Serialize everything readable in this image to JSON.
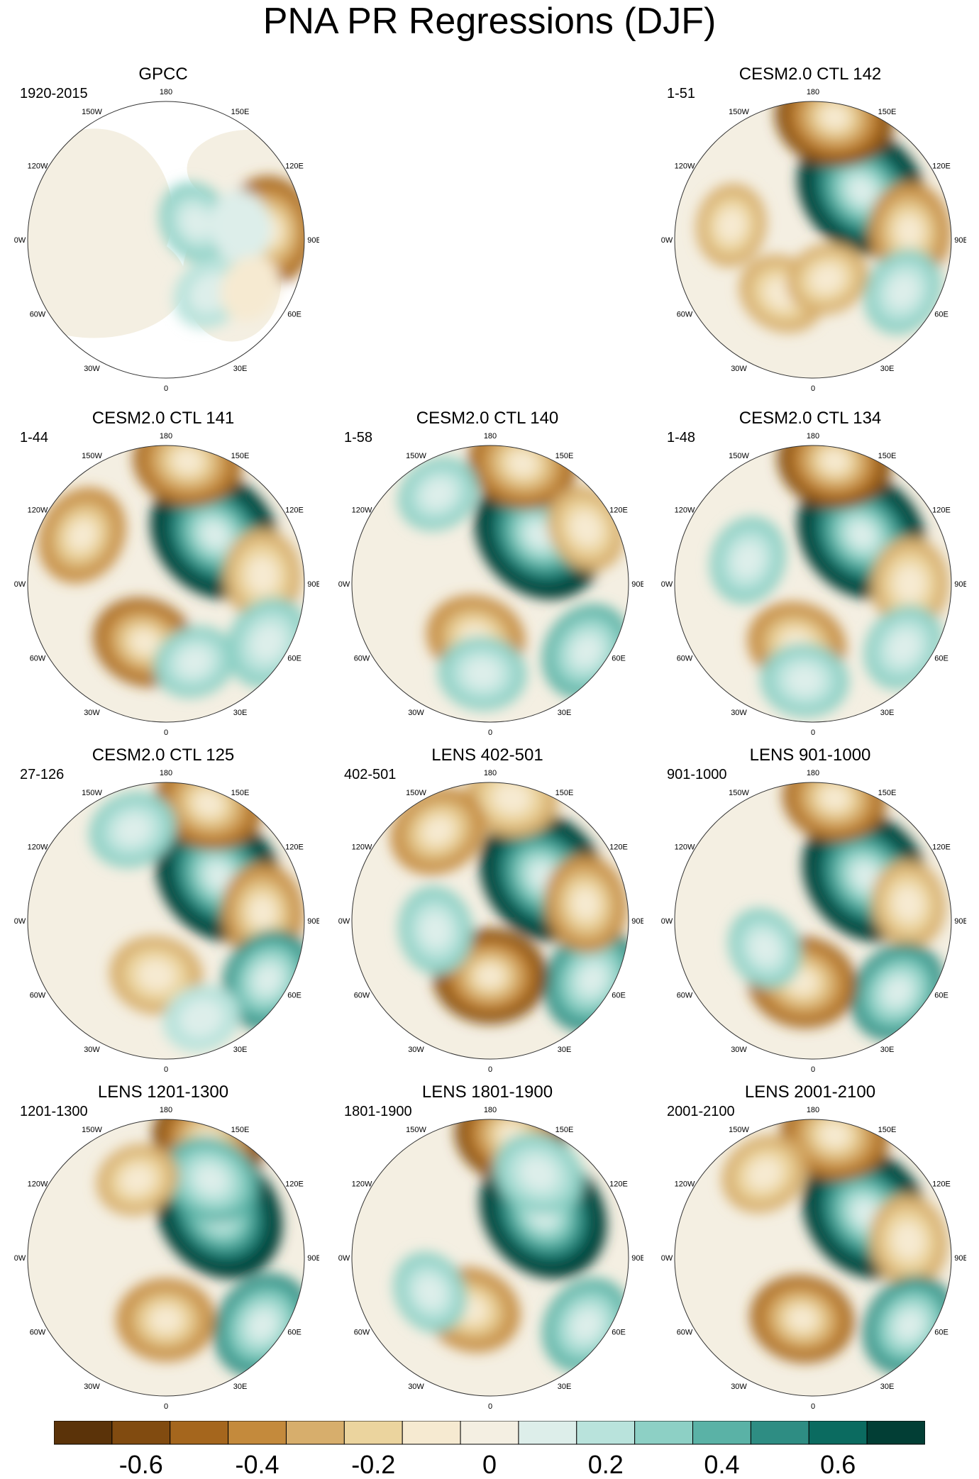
{
  "title": "PNA PR Regressions (DJF)",
  "chart_data": {
    "type": "heatmap",
    "title": "PNA PR Regressions (DJF)",
    "projection": "north-polar-stereographic",
    "longitude_labels": [
      "180",
      "150E",
      "120E",
      "90E",
      "60E",
      "30E",
      "0",
      "30W",
      "60W",
      "90W",
      "120W",
      "150W"
    ],
    "colorbar": {
      "levels": [
        -0.7,
        -0.6,
        -0.5,
        -0.4,
        -0.3,
        -0.2,
        -0.1,
        0,
        0.1,
        0.2,
        0.3,
        0.4,
        0.5,
        0.6,
        0.7
      ],
      "tick_labels": [
        "-0.6",
        "-0.4",
        "-0.2",
        "0",
        "0.2",
        "0.4",
        "0.6"
      ],
      "tick_values": [
        -0.6,
        -0.4,
        -0.2,
        0,
        0.2,
        0.4,
        0.6
      ],
      "colors": [
        "#5b3309",
        "#814b10",
        "#a5661d",
        "#c48a3c",
        "#d7ae6c",
        "#ebd49e",
        "#f6ead1",
        "#f4efe2",
        "#ddeeea",
        "#b9e3dc",
        "#8dd0c5",
        "#5ab2a6",
        "#2e8d83",
        "#0b6b60",
        "#023e35"
      ]
    },
    "panels": [
      {
        "title": "GPCC",
        "subtitle": "1920-2015",
        "land_only": true,
        "features": [
          {
            "lon": 120,
            "r": 0.25,
            "v": 0.25
          },
          {
            "lon": 95,
            "r": 0.75,
            "v": -0.5
          },
          {
            "lon": 40,
            "r": 0.5,
            "v": 0.2
          },
          {
            "lon": 100,
            "r": 0.55,
            "v": 0.15
          },
          {
            "lon": 60,
            "r": 0.7,
            "v": -0.1
          }
        ]
      },
      {
        "title": "",
        "subtitle": "",
        "empty": true
      },
      {
        "title": "CESM2.0 CTL 142",
        "subtitle": "1-51",
        "features": [
          {
            "lon": 135,
            "r": 0.5,
            "v": 0.8
          },
          {
            "lon": 170,
            "r": 0.9,
            "v": -0.6
          },
          {
            "lon": 95,
            "r": 0.7,
            "v": -0.4
          },
          {
            "lon": 60,
            "r": 0.75,
            "v": 0.3
          },
          {
            "lon": -30,
            "r": 0.45,
            "v": -0.3
          },
          {
            "lon": 20,
            "r": 0.3,
            "v": -0.25
          },
          {
            "lon": -100,
            "r": 0.6,
            "v": -0.25
          }
        ]
      },
      {
        "title": "CESM2.0 CTL 141",
        "subtitle": "1-44",
        "features": [
          {
            "lon": 135,
            "r": 0.5,
            "v": 0.8
          },
          {
            "lon": 170,
            "r": 0.9,
            "v": -0.5
          },
          {
            "lon": 95,
            "r": 0.7,
            "v": -0.35
          },
          {
            "lon": 60,
            "r": 0.85,
            "v": 0.35
          },
          {
            "lon": -20,
            "r": 0.45,
            "v": -0.45
          },
          {
            "lon": 20,
            "r": 0.6,
            "v": 0.25
          },
          {
            "lon": -120,
            "r": 0.7,
            "v": -0.4
          }
        ]
      },
      {
        "title": "CESM2.0 CTL 140",
        "subtitle": "1-58",
        "features": [
          {
            "lon": 135,
            "r": 0.5,
            "v": 0.8
          },
          {
            "lon": 165,
            "r": 0.9,
            "v": -0.5
          },
          {
            "lon": 120,
            "r": 0.8,
            "v": -0.3
          },
          {
            "lon": 55,
            "r": 0.85,
            "v": 0.4
          },
          {
            "lon": -15,
            "r": 0.4,
            "v": -0.4
          },
          {
            "lon": -5,
            "r": 0.65,
            "v": 0.3
          },
          {
            "lon": -150,
            "r": 0.75,
            "v": 0.25
          }
        ]
      },
      {
        "title": "CESM2.0 CTL 134",
        "subtitle": "1-48",
        "features": [
          {
            "lon": 135,
            "r": 0.5,
            "v": 0.8
          },
          {
            "lon": 170,
            "r": 0.9,
            "v": -0.55
          },
          {
            "lon": 90,
            "r": 0.7,
            "v": -0.35
          },
          {
            "lon": 55,
            "r": 0.8,
            "v": 0.3
          },
          {
            "lon": -15,
            "r": 0.45,
            "v": -0.4
          },
          {
            "lon": -5,
            "r": 0.7,
            "v": 0.3
          },
          {
            "lon": -110,
            "r": 0.5,
            "v": 0.3
          }
        ]
      },
      {
        "title": "CESM2.0 CTL 125",
        "subtitle": "27-126",
        "features": [
          {
            "lon": 130,
            "r": 0.5,
            "v": 0.8
          },
          {
            "lon": 160,
            "r": 0.9,
            "v": -0.5
          },
          {
            "lon": 95,
            "r": 0.7,
            "v": -0.4
          },
          {
            "lon": 60,
            "r": 0.85,
            "v": 0.45
          },
          {
            "lon": -10,
            "r": 0.4,
            "v": -0.35
          },
          {
            "lon": -160,
            "r": 0.7,
            "v": 0.3
          },
          {
            "lon": 20,
            "r": 0.75,
            "v": 0.2
          }
        ]
      },
      {
        "title": "LENS 402-501",
        "subtitle": "402-501",
        "features": [
          {
            "lon": 130,
            "r": 0.5,
            "v": 0.8
          },
          {
            "lon": 170,
            "r": 0.9,
            "v": -0.35
          },
          {
            "lon": -150,
            "r": 0.75,
            "v": -0.4
          },
          {
            "lon": 60,
            "r": 0.85,
            "v": 0.5
          },
          {
            "lon": 0,
            "r": 0.4,
            "v": -0.55
          },
          {
            "lon": 100,
            "r": 0.7,
            "v": -0.4
          },
          {
            "lon": -80,
            "r": 0.4,
            "v": 0.3
          }
        ]
      },
      {
        "title": "LENS 901-1000",
        "subtitle": "901-1000",
        "features": [
          {
            "lon": 130,
            "r": 0.5,
            "v": 0.8
          },
          {
            "lon": 170,
            "r": 0.9,
            "v": -0.45
          },
          {
            "lon": 100,
            "r": 0.7,
            "v": -0.3
          },
          {
            "lon": 50,
            "r": 0.8,
            "v": 0.45
          },
          {
            "lon": -10,
            "r": 0.45,
            "v": -0.5
          },
          {
            "lon": -60,
            "r": 0.4,
            "v": 0.25
          }
        ]
      },
      {
        "title": "LENS 1201-1300",
        "subtitle": "1201-1300",
        "features": [
          {
            "lon": 130,
            "r": 0.5,
            "v": 0.8
          },
          {
            "lon": 160,
            "r": 0.9,
            "v": -0.55
          },
          {
            "lon": 150,
            "r": 0.65,
            "v": 0.4
          },
          {
            "lon": 55,
            "r": 0.85,
            "v": 0.5
          },
          {
            "lon": 0,
            "r": 0.45,
            "v": -0.4
          },
          {
            "lon": -160,
            "r": 0.6,
            "v": -0.25
          }
        ]
      },
      {
        "title": "LENS 1801-1900",
        "subtitle": "1801-1900",
        "features": [
          {
            "lon": 130,
            "r": 0.5,
            "v": 0.8
          },
          {
            "lon": 170,
            "r": 0.9,
            "v": -0.55
          },
          {
            "lon": 150,
            "r": 0.7,
            "v": 0.35
          },
          {
            "lon": 55,
            "r": 0.85,
            "v": 0.4
          },
          {
            "lon": -20,
            "r": 0.4,
            "v": -0.4
          },
          {
            "lon": -60,
            "r": 0.5,
            "v": 0.25
          }
        ]
      },
      {
        "title": "LENS 2001-2100",
        "subtitle": "2001-2100",
        "features": [
          {
            "lon": 130,
            "r": 0.5,
            "v": 0.8
          },
          {
            "lon": 170,
            "r": 0.9,
            "v": -0.5
          },
          {
            "lon": 100,
            "r": 0.7,
            "v": -0.35
          },
          {
            "lon": 55,
            "r": 0.85,
            "v": 0.45
          },
          {
            "lon": -10,
            "r": 0.45,
            "v": -0.45
          },
          {
            "lon": -150,
            "r": 0.7,
            "v": -0.3
          }
        ]
      }
    ]
  }
}
